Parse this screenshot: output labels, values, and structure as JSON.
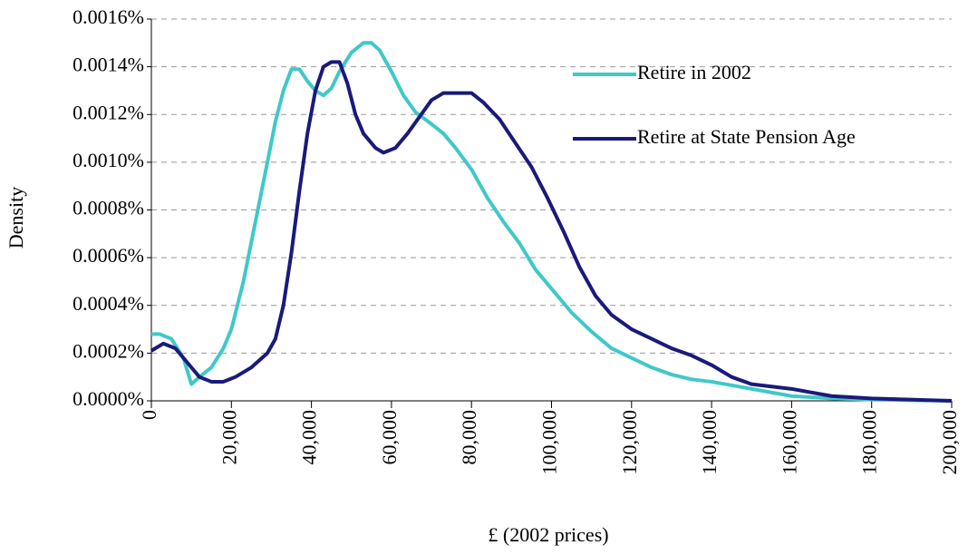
{
  "chart_data": {
    "type": "line",
    "x_label": "£ (2002 prices)",
    "y_label": "Density",
    "xlim": [
      0,
      200000
    ],
    "ylim": [
      0,
      0.0016
    ],
    "xticks": [
      0,
      {
        "value": 20000,
        "label": "20,000"
      },
      {
        "value": 40000,
        "label": "40,000"
      },
      {
        "value": 60000,
        "label": "60,000"
      },
      {
        "value": 80000,
        "label": "80,000"
      },
      {
        "value": 100000,
        "label": "100,000"
      },
      {
        "value": 120000,
        "label": "120,000"
      },
      {
        "value": 140000,
        "label": "140,000"
      },
      {
        "value": 160000,
        "label": "160,000"
      },
      {
        "value": 180000,
        "label": "180,000"
      },
      {
        "value": 200000,
        "label": "200,000"
      }
    ],
    "yticks": [
      {
        "value": 0,
        "label": "0.0000%"
      },
      {
        "value": 0.0002,
        "label": "0.0002%"
      },
      {
        "value": 0.0004,
        "label": "0.0004%"
      },
      {
        "value": 0.0006,
        "label": "0.0006%"
      },
      {
        "value": 0.0008,
        "label": "0.0008%"
      },
      {
        "value": 0.001,
        "label": "0.0010%"
      },
      {
        "value": 0.0012,
        "label": "0.0012%"
      },
      {
        "value": 0.0014,
        "label": "0.0014%"
      },
      {
        "value": 0.0016,
        "label": "0.0016%"
      }
    ],
    "grid": true,
    "legend": "upper right",
    "series": [
      {
        "name": "Retire in 2002",
        "color": "#40c8c8",
        "x": [
          0,
          2000,
          5000,
          8000,
          10000,
          12000,
          15000,
          18000,
          20000,
          23000,
          26000,
          29000,
          31000,
          33000,
          35000,
          37000,
          39000,
          41000,
          43000,
          45000,
          47000,
          50000,
          53000,
          55000,
          57000,
          60000,
          63000,
          66000,
          70000,
          73000,
          76000,
          80000,
          84000,
          88000,
          92000,
          96000,
          100000,
          105000,
          110000,
          115000,
          120000,
          125000,
          130000,
          135000,
          140000,
          150000,
          160000,
          170000,
          180000,
          200000
        ],
        "values": [
          0.00028,
          0.00028,
          0.00026,
          0.00018,
          7e-05,
          0.0001,
          0.00014,
          0.00022,
          0.0003,
          0.0005,
          0.00075,
          0.001,
          0.00117,
          0.0013,
          0.00139,
          0.00139,
          0.00134,
          0.0013,
          0.00128,
          0.00131,
          0.00138,
          0.00146,
          0.0015,
          0.0015,
          0.00147,
          0.00138,
          0.00128,
          0.00121,
          0.00116,
          0.00112,
          0.00106,
          0.00097,
          0.00085,
          0.00075,
          0.00066,
          0.00055,
          0.00047,
          0.00037,
          0.00029,
          0.00022,
          0.00018,
          0.00014,
          0.00011,
          9e-05,
          8e-05,
          5e-05,
          2e-05,
          1e-05,
          5e-06,
          0
        ]
      },
      {
        "name": "Retire at State Pension Age",
        "color": "#1a1a7a",
        "x": [
          0,
          3000,
          6000,
          9000,
          12000,
          15000,
          18000,
          21000,
          25000,
          29000,
          31000,
          33000,
          35000,
          37000,
          39000,
          41000,
          43000,
          45000,
          47000,
          49000,
          51000,
          53000,
          56000,
          58000,
          61000,
          64000,
          67000,
          70000,
          73000,
          80000,
          83000,
          87000,
          91000,
          95000,
          99000,
          103000,
          107000,
          111000,
          115000,
          120000,
          125000,
          130000,
          135000,
          140000,
          145000,
          150000,
          160000,
          170000,
          180000,
          200000
        ],
        "values": [
          0.00021,
          0.00024,
          0.00022,
          0.00016,
          0.0001,
          8e-05,
          8e-05,
          0.0001,
          0.00014,
          0.0002,
          0.00026,
          0.0004,
          0.00062,
          0.00088,
          0.00112,
          0.0013,
          0.0014,
          0.00142,
          0.00142,
          0.00133,
          0.0012,
          0.00112,
          0.00106,
          0.00104,
          0.00106,
          0.00112,
          0.00119,
          0.00126,
          0.00129,
          0.00129,
          0.00125,
          0.00118,
          0.00108,
          0.00098,
          0.00085,
          0.00071,
          0.00056,
          0.00044,
          0.00036,
          0.0003,
          0.00026,
          0.00022,
          0.00019,
          0.00015,
          0.0001,
          7e-05,
          5e-05,
          2e-05,
          1e-05,
          0
        ]
      }
    ]
  }
}
